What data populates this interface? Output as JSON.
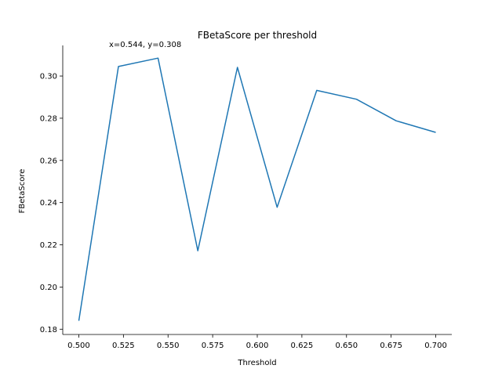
{
  "chart_data": {
    "type": "line",
    "title": "FBetaScore per threshold",
    "xlabel": "Threshold",
    "ylabel": "FBetaScore",
    "xlim": [
      0.491,
      0.709
    ],
    "ylim": [
      0.1775,
      0.3145
    ],
    "x_ticks": [
      0.5,
      0.525,
      0.55,
      0.575,
      0.6,
      0.625,
      0.65,
      0.675,
      0.7
    ],
    "x_tick_labels": [
      "0.500",
      "0.525",
      "0.550",
      "0.575",
      "0.600",
      "0.625",
      "0.650",
      "0.675",
      "0.700"
    ],
    "y_ticks": [
      0.18,
      0.2,
      0.22,
      0.24,
      0.26,
      0.28,
      0.3
    ],
    "y_tick_labels": [
      "0.18",
      "0.20",
      "0.22",
      "0.24",
      "0.26",
      "0.28",
      "0.30"
    ],
    "grid": false,
    "series": [
      {
        "color": "#1f77b4",
        "x": [
          0.5,
          0.5222,
          0.5444,
          0.5667,
          0.5889,
          0.6111,
          0.6333,
          0.6556,
          0.6778,
          0.7
        ],
        "y": [
          0.184,
          0.3045,
          0.3085,
          0.2172,
          0.3041,
          0.2378,
          0.2932,
          0.289,
          0.2788,
          0.2733
        ]
      }
    ],
    "annotation": {
      "text": "x=0.544, y=0.308",
      "x": 0.544,
      "y": 0.308
    }
  }
}
